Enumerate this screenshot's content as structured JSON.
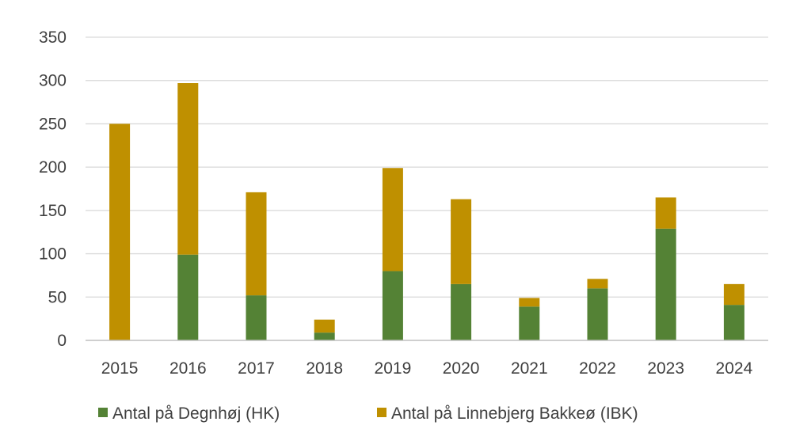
{
  "chart_data": {
    "type": "bar",
    "stacked": true,
    "title": "",
    "xlabel": "",
    "ylabel": "",
    "ylim": [
      0,
      350
    ],
    "yticks": [
      0,
      50,
      100,
      150,
      200,
      250,
      300,
      350
    ],
    "grid": true,
    "legend_position": "bottom",
    "categories": [
      "2015",
      "2016",
      "2017",
      "2018",
      "2019",
      "2020",
      "2021",
      "2022",
      "2023",
      "2024"
    ],
    "series": [
      {
        "name": "Antal på Degnhøj (HK)",
        "color": "#548235",
        "values": [
          0,
          99,
          52,
          9,
          80,
          65,
          39,
          60,
          129,
          41
        ]
      },
      {
        "name": "Antal på Linnebjerg Bakkeø (IBK)",
        "color": "#bf9000",
        "values": [
          250,
          198,
          119,
          15,
          119,
          98,
          10,
          11,
          36,
          24
        ]
      }
    ]
  }
}
